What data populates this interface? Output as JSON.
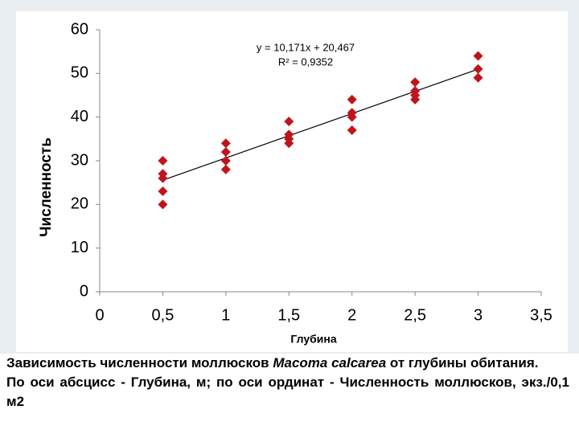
{
  "chart_data": {
    "type": "scatter",
    "xlabel": "Глубина",
    "ylabel": "Численность",
    "series": [
      {
        "color": "#c0141c",
        "x": [
          0.5,
          0.5,
          0.5,
          0.5,
          0.5,
          1,
          1,
          1,
          1,
          1.5,
          1.5,
          1.5,
          1.5,
          2,
          2,
          2,
          2,
          2.5,
          2.5,
          2.5,
          2.5,
          3,
          3,
          3
        ],
        "values": [
          30,
          27,
          26,
          23,
          20,
          34,
          32,
          30,
          28,
          39,
          36,
          35,
          34,
          44,
          41,
          40,
          37,
          48,
          46,
          45,
          44,
          54,
          51,
          49
        ]
      }
    ],
    "trendline": {
      "slope": 10.171,
      "intercept": 20.467,
      "x_range": [
        0.5,
        3
      ],
      "equation": "y = 10,171x + 20,467",
      "r2": "R² = 0,9352"
    },
    "xlim": [
      0,
      3.5
    ],
    "xticks": [
      0,
      {
        "value": 0.5,
        "label": "0,5"
      },
      1,
      {
        "value": 1.5,
        "label": "1,5"
      },
      2,
      {
        "value": 2.5,
        "label": "2,5"
      },
      3,
      {
        "value": 3.5,
        "label": "3,5"
      }
    ],
    "ylim": [
      0,
      60
    ],
    "yticks": [
      0,
      10,
      20,
      30,
      40,
      50,
      60
    ]
  },
  "caption": {
    "before": "Зависимость численности моллюсков ",
    "italic": "Macoma calcarea",
    "after": " от глубины обитания.",
    "second": "По оси абсцисс - Глубина, м; по оси ординат - Численность моллюсков, экз./0,1 м2"
  }
}
